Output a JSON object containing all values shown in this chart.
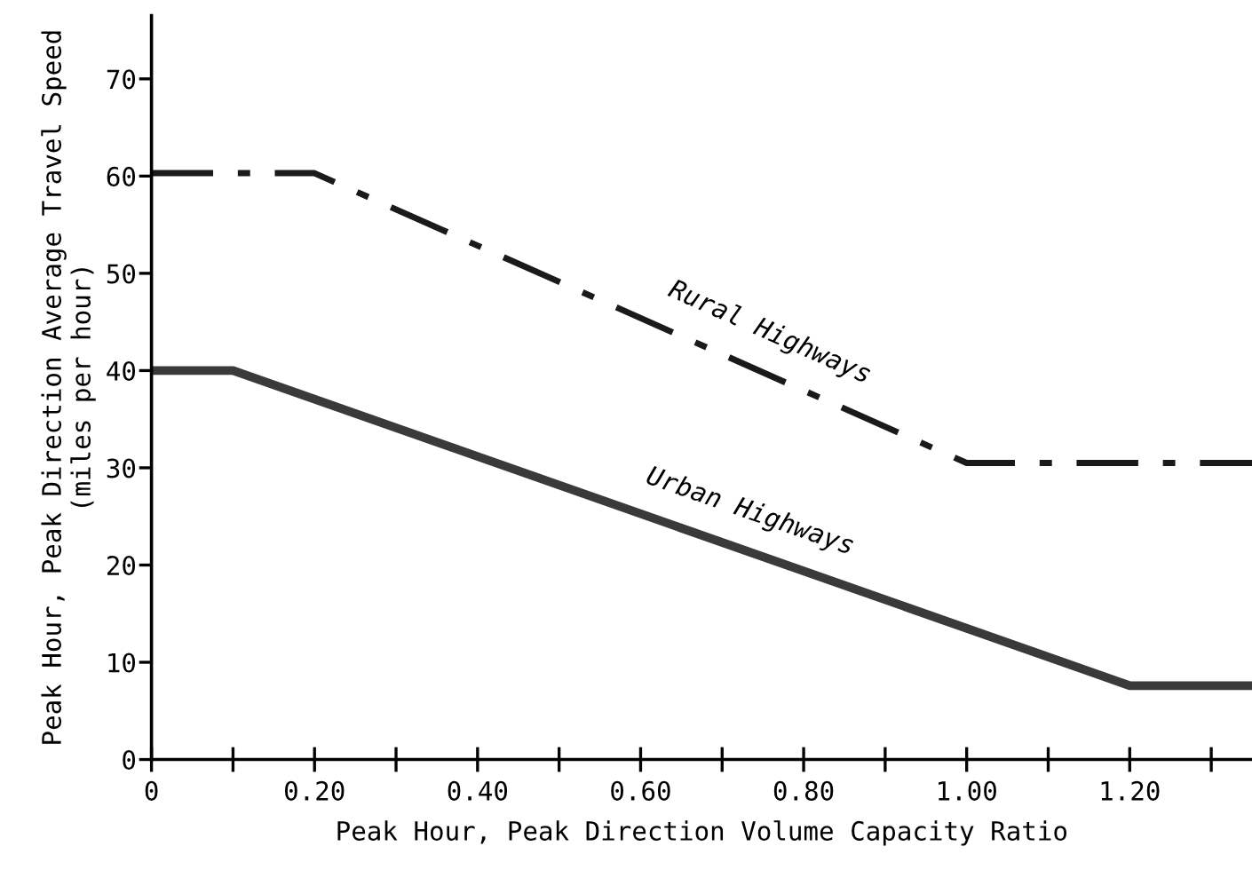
{
  "chart_data": {
    "type": "line",
    "xlabel": "Peak Hour, Peak Direction Volume Capacity Ratio",
    "ylabel": "Peak Hour, Peak Direction Average Travel Speed\n(miles per hour)",
    "series": [
      {
        "name": "Rural Highways",
        "color": "#1a1a1a",
        "line_style": "dashdot",
        "x": [
          0,
          0.2,
          1.0,
          1.35
        ],
        "values": [
          60.3,
          60.3,
          30.5,
          30.5
        ]
      },
      {
        "name": "Urban Highways",
        "color": "#3a3a3a",
        "line_style": "solid",
        "x": [
          0,
          0.1,
          1.2,
          1.35
        ],
        "values": [
          40,
          40,
          7.6,
          7.6
        ]
      }
    ],
    "xlim": [
      0,
      1.35
    ],
    "ylim": [
      0,
      76.5
    ],
    "xticks": [
      {
        "value": 0,
        "label": "0"
      },
      {
        "value": 0.1,
        "label": null
      },
      {
        "value": 0.2,
        "label": "0.20"
      },
      {
        "value": 0.3,
        "label": null
      },
      {
        "value": 0.4,
        "label": "0.40"
      },
      {
        "value": 0.5,
        "label": null
      },
      {
        "value": 0.6,
        "label": "0.60"
      },
      {
        "value": 0.7,
        "label": null
      },
      {
        "value": 0.8,
        "label": "0.80"
      },
      {
        "value": 0.9,
        "label": null
      },
      {
        "value": 1.0,
        "label": "1.00"
      },
      {
        "value": 1.1,
        "label": null
      },
      {
        "value": 1.2,
        "label": "1.20"
      },
      {
        "value": 1.3,
        "label": null
      }
    ],
    "yticks": [
      0,
      10,
      20,
      30,
      40,
      50,
      60,
      70
    ],
    "grid": false,
    "legend": false,
    "marker": "none"
  }
}
